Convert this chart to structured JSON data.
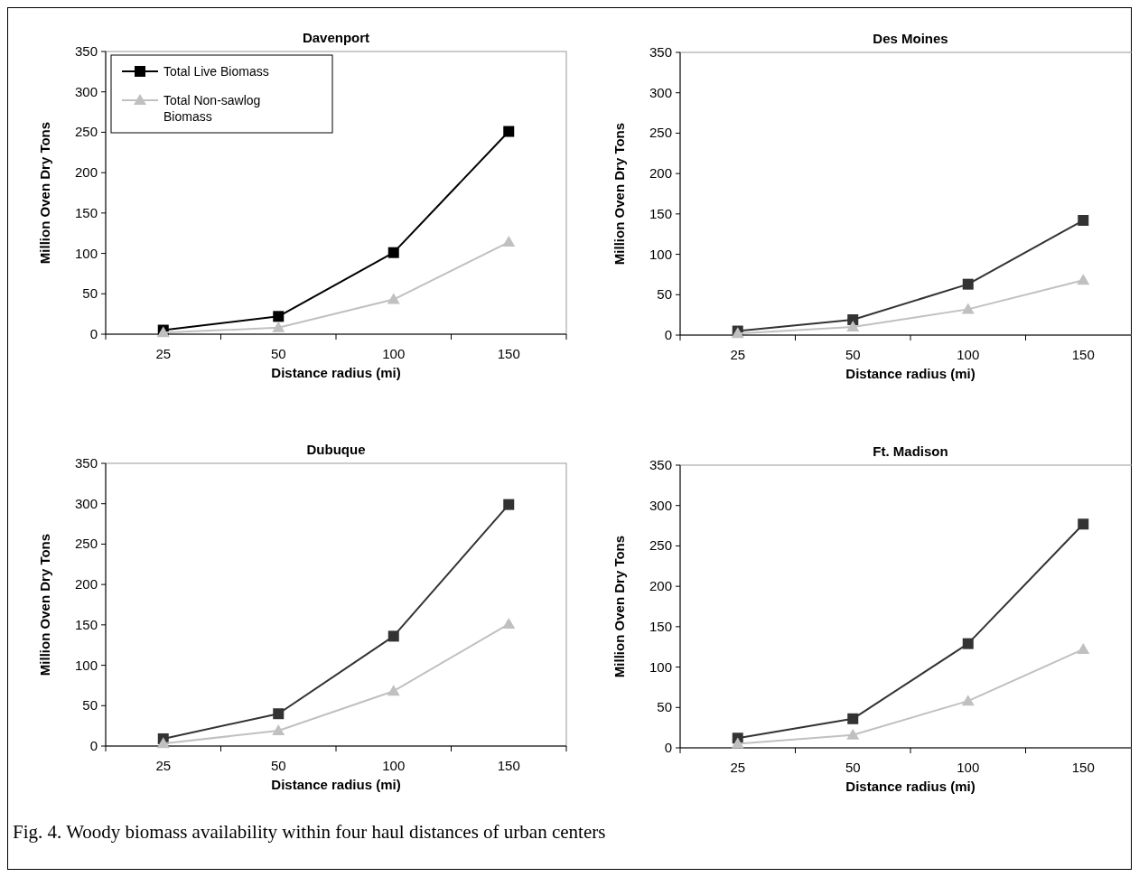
{
  "chart_data": [
    {
      "type": "line",
      "title": "Davenport",
      "xlabel": "Distance radius (mi)",
      "ylabel": "Million Oven Dry Tons",
      "categories": [
        "25",
        "50",
        "100",
        "150"
      ],
      "ylim": [
        0,
        350
      ],
      "yticks": [
        0,
        50,
        100,
        150,
        200,
        250,
        300,
        350
      ],
      "legend": "top left",
      "series": [
        {
          "name": "Total Live Biomass",
          "color": "#000000",
          "marker": "square",
          "values": [
            5,
            22,
            101,
            251
          ]
        },
        {
          "name": "Total Non-sawlog Biomass",
          "color": "#c0c0c0",
          "marker": "triangle",
          "values": [
            2,
            8,
            43,
            114
          ]
        }
      ]
    },
    {
      "type": "line",
      "title": "Des Moines",
      "xlabel": "Distance radius (mi)",
      "ylabel": "Million Oven Dry Tons",
      "categories": [
        "25",
        "50",
        "100",
        "150"
      ],
      "ylim": [
        0,
        350
      ],
      "yticks": [
        0,
        50,
        100,
        150,
        200,
        250,
        300,
        350
      ],
      "series": [
        {
          "color": "#333333",
          "marker": "square",
          "values": [
            5,
            19,
            63,
            142
          ]
        },
        {
          "color": "#c0c0c0",
          "marker": "triangle",
          "values": [
            2,
            10,
            32,
            68
          ]
        }
      ]
    },
    {
      "type": "line",
      "title": "Dubuque",
      "xlabel": "Distance radius (mi)",
      "ylabel": "Million Oven Dry Tons",
      "categories": [
        "25",
        "50",
        "100",
        "150"
      ],
      "ylim": [
        0,
        350
      ],
      "yticks": [
        0,
        50,
        100,
        150,
        200,
        250,
        300,
        350
      ],
      "series": [
        {
          "color": "#333333",
          "marker": "square",
          "values": [
            9,
            40,
            136,
            299
          ]
        },
        {
          "color": "#c0c0c0",
          "marker": "triangle",
          "values": [
            3,
            19,
            68,
            151
          ]
        }
      ]
    },
    {
      "type": "line",
      "title": "Ft. Madison",
      "xlabel": "Distance radius (mi)",
      "ylabel": "Million Oven Dry Tons",
      "categories": [
        "25",
        "50",
        "100",
        "150"
      ],
      "ylim": [
        0,
        350
      ],
      "yticks": [
        0,
        50,
        100,
        150,
        200,
        250,
        300,
        350
      ],
      "annotations": [
        "Fig. 4.  Woody biomass availability within four haul distances of urban centers"
      ],
      "series": [
        {
          "color": "#333333",
          "marker": "square",
          "values": [
            12,
            36,
            129,
            277
          ]
        },
        {
          "color": "#c0c0c0",
          "marker": "triangle",
          "values": [
            5,
            16,
            58,
            122
          ]
        }
      ]
    }
  ]
}
